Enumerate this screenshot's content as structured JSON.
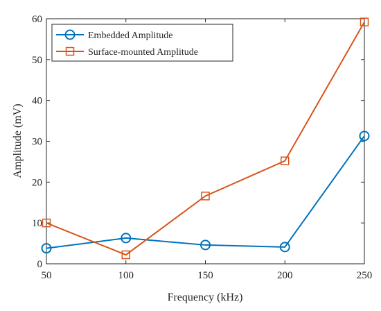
{
  "chart_data": {
    "type": "line",
    "title": "",
    "xlabel": "Frequency (kHz)",
    "ylabel": "Amplitude (mV)",
    "x": [
      50,
      100,
      150,
      200,
      250
    ],
    "xlim": [
      50,
      250
    ],
    "ylim": [
      0,
      60
    ],
    "xticks": [
      50,
      100,
      150,
      200,
      250
    ],
    "yticks": [
      0,
      10,
      20,
      30,
      40,
      50,
      60
    ],
    "grid": false,
    "legend_position": "top-left",
    "series": [
      {
        "name": "Embedded Amplitude",
        "color": "#0072BD",
        "marker": "circle",
        "values": [
          3.8,
          6.3,
          4.6,
          4.1,
          31.3
        ]
      },
      {
        "name": "Surface-mounted Amplitude",
        "color": "#D95319",
        "marker": "square",
        "values": [
          10.0,
          2.2,
          16.6,
          25.2,
          59.2
        ]
      }
    ]
  }
}
